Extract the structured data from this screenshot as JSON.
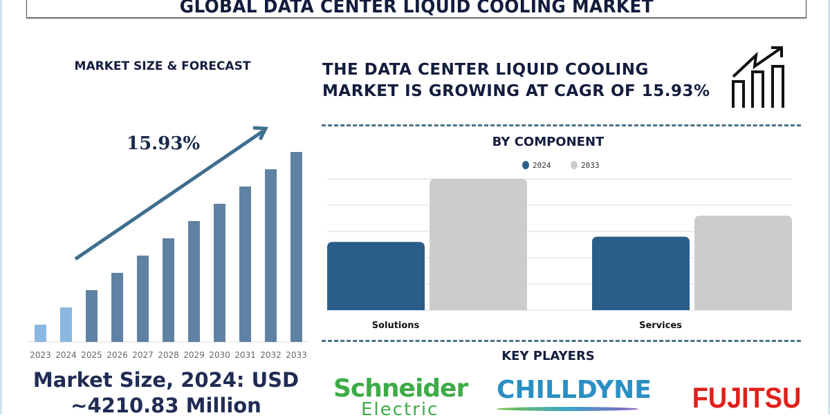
{
  "title": "GLOBAL DATA CENTER LIQUID COOLING MARKET",
  "left_panel": {
    "heading": "MARKET SIZE & FORECAST",
    "cagr_label": "15.93%",
    "market_size_line1": "Market Size, 2024: USD",
    "market_size_line2": "~4210.83 Million"
  },
  "headline": {
    "line1": "THE DATA CENTER LIQUID COOLING",
    "line2": "MARKET IS GROWING AT CAGR OF 15.93%",
    "icon": "growth-chart-icon"
  },
  "by_component_title": "BY COMPONENT",
  "key_players": {
    "title": "KEY PLAYERS",
    "logos": [
      {
        "name": "Schneider",
        "sub": "Electric",
        "color": "#3dab47"
      },
      {
        "name": "CHILLDYNE",
        "color": "#2a8fc4"
      },
      {
        "name": "FUJITSU",
        "color": "#e0201b"
      }
    ]
  },
  "chart_data": [
    {
      "type": "bar",
      "title": "",
      "categories": [
        "2023",
        "2024",
        "2025",
        "2026",
        "2027",
        "2028",
        "2029",
        "2030",
        "2031",
        "2032",
        "2033"
      ],
      "values": [
        1,
        2,
        3,
        4,
        5,
        6,
        7,
        8,
        9,
        10,
        11
      ],
      "highlight_categories": [
        "2023",
        "2024"
      ],
      "colors": {
        "highlight": "#8ab8e0",
        "default": "#5f82a3"
      },
      "annotation": "15.93%",
      "grid": false,
      "ylim": [
        0,
        11
      ]
    },
    {
      "type": "bar",
      "title": "BY COMPONENT",
      "categories": [
        "Solutions",
        "Services"
      ],
      "series": [
        {
          "name": "2024",
          "values": [
            2.6,
            2.8
          ],
          "color": "#2a5d8a"
        },
        {
          "name": "2033",
          "values": [
            5.0,
            3.6
          ],
          "color": "#cccccc"
        }
      ],
      "ylim": [
        0,
        5
      ],
      "grid": true,
      "legend": "top-center"
    }
  ]
}
